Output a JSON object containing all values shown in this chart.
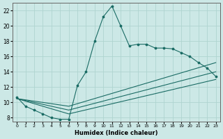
{
  "xlabel": "Humidex (Indice chaleur)",
  "background_color": "#cce8e6",
  "grid_color": "#afd4d0",
  "line_color": "#1a6b64",
  "xlim": [
    -0.5,
    23.5
  ],
  "ylim": [
    7.5,
    23
  ],
  "yticks": [
    8,
    10,
    12,
    14,
    16,
    18,
    20,
    22
  ],
  "xticks": [
    0,
    1,
    2,
    3,
    4,
    5,
    6,
    7,
    8,
    9,
    10,
    11,
    12,
    13,
    14,
    15,
    16,
    17,
    18,
    19,
    20,
    21,
    22,
    23
  ],
  "series1_x": [
    0,
    1,
    2,
    3,
    4,
    5,
    6,
    7,
    8,
    9,
    10,
    11,
    12,
    13,
    14,
    15,
    16,
    17,
    18,
    19,
    20,
    21,
    22,
    23
  ],
  "series1_y": [
    10.7,
    9.5,
    9.0,
    8.5,
    8.0,
    7.8,
    7.8,
    12.2,
    14.0,
    18.0,
    21.2,
    22.6,
    20.0,
    17.4,
    17.6,
    17.6,
    17.1,
    17.1,
    17.0,
    16.5,
    16.0,
    15.2,
    14.5,
    13.4
  ],
  "series2_x": [
    0,
    6,
    23
  ],
  "series2_y": [
    10.5,
    8.5,
    13.0
  ],
  "series3_x": [
    0,
    6,
    23
  ],
  "series3_y": [
    10.5,
    9.0,
    14.0
  ],
  "series4_x": [
    0,
    6,
    23
  ],
  "series4_y": [
    10.5,
    9.5,
    15.2
  ]
}
